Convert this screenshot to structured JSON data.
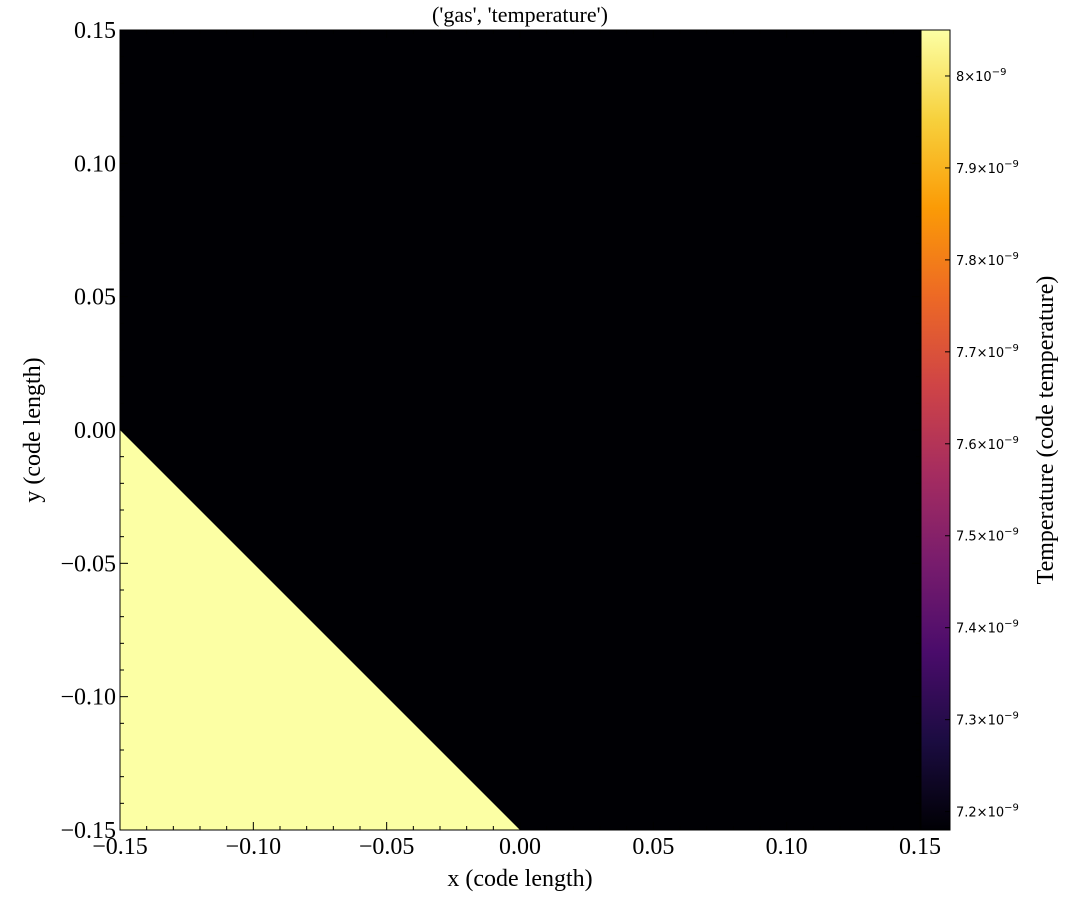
{
  "chart_data": {
    "type": "heatmap",
    "title": "('gas', 'temperature')",
    "xlabel": "x  (code length)",
    "ylabel": "y  (code length)",
    "xlim": [
      -0.15,
      0.15
    ],
    "ylim": [
      -0.15,
      0.15
    ],
    "x_ticks": [
      -0.15,
      -0.1,
      -0.05,
      0.0,
      0.05,
      0.1,
      0.15
    ],
    "x_tick_labels": [
      "−0.15",
      "−0.10",
      "−0.05",
      "0.00",
      "0.05",
      "0.10",
      "0.15"
    ],
    "y_ticks": [
      -0.15,
      -0.1,
      -0.05,
      0.0,
      0.05,
      0.1,
      0.15
    ],
    "y_tick_labels": [
      "−0.15",
      "−0.10",
      "−0.05",
      "0.00",
      "0.05",
      "0.10",
      "0.15"
    ],
    "regions": [
      {
        "vertices": [
          [
            -0.15,
            -0.15
          ],
          [
            0.15,
            -0.15
          ],
          [
            0.15,
            0.15
          ],
          [
            -0.15,
            0.15
          ]
        ],
        "value": 7.18e-09,
        "color": "#000004"
      },
      {
        "vertices": [
          [
            -0.15,
            0.0
          ],
          [
            0.0,
            -0.15
          ],
          [
            -0.15,
            -0.15
          ]
        ],
        "value": 8.05e-09,
        "color": "#fcffa4"
      }
    ],
    "colorbar": {
      "label": "Temperature  (code temperature)",
      "colormap": "inferno",
      "range": [
        7.18e-09,
        8.05e-09
      ],
      "tick_values": [
        7.2e-09,
        7.3e-09,
        7.4e-09,
        7.5e-09,
        7.6e-09,
        7.7e-09,
        7.8e-09,
        7.9e-09,
        8e-09
      ],
      "tick_mantissas": [
        "7.2",
        "7.3",
        "7.4",
        "7.5",
        "7.6",
        "7.7",
        "7.8",
        "7.9",
        "8"
      ],
      "tick_times": "×10",
      "tick_exponent": "−9",
      "colors": [
        "#000004",
        "#1b0c41",
        "#4a0c6b",
        "#781c6d",
        "#a52c60",
        "#cf4446",
        "#ed6925",
        "#fb9b06",
        "#f7d13d",
        "#fcffa4"
      ]
    }
  }
}
